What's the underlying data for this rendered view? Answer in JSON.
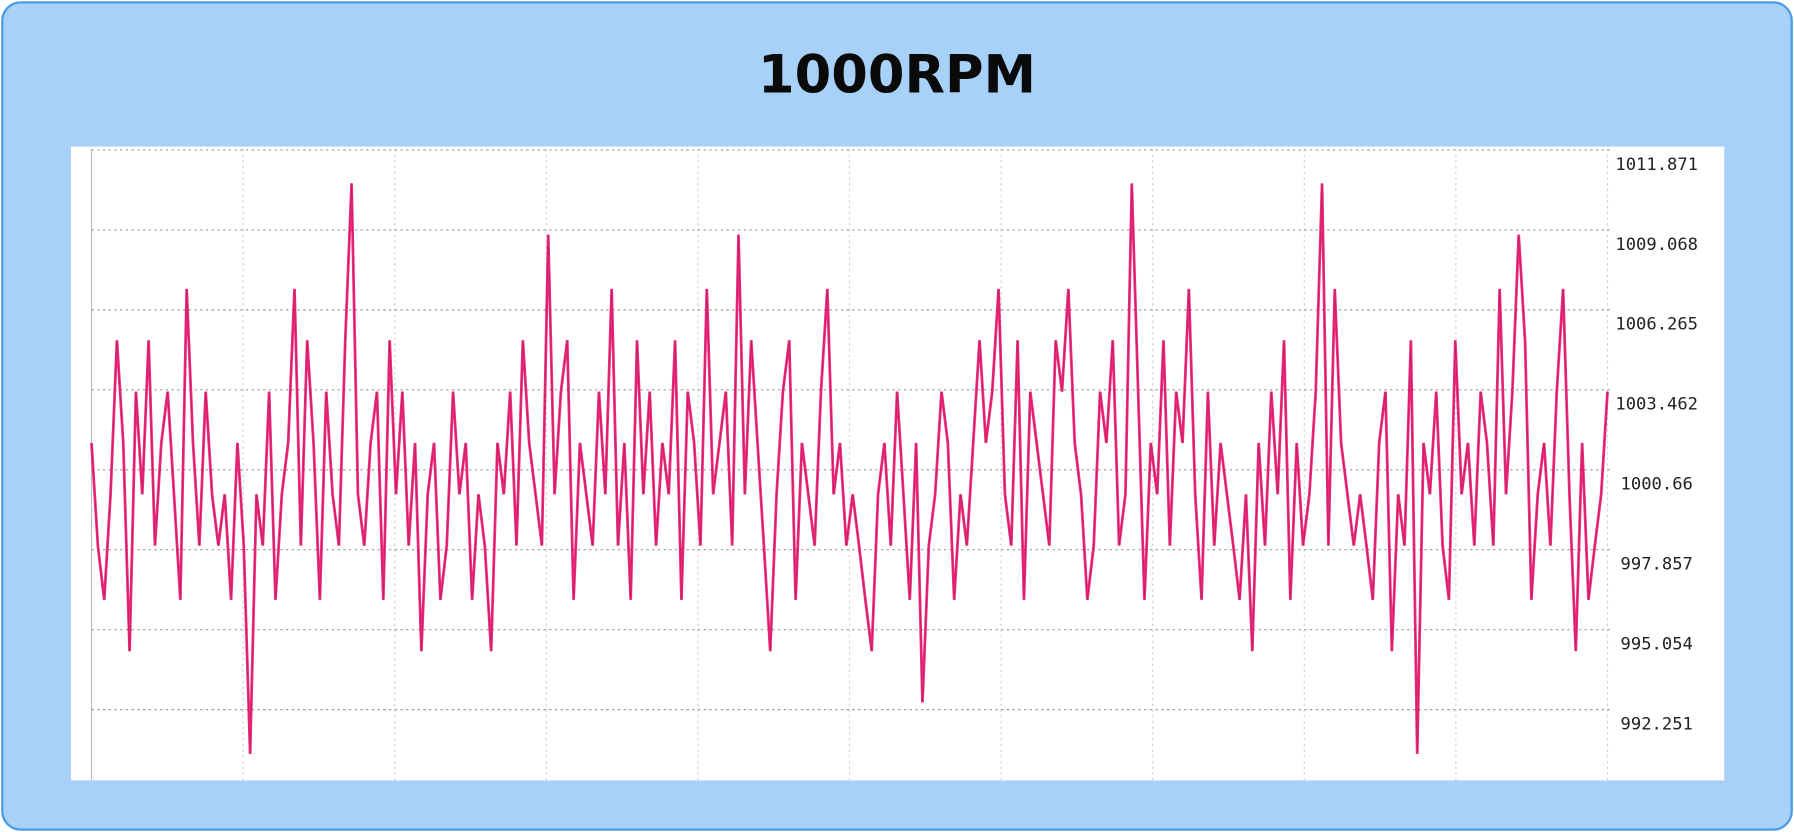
{
  "chart_data": {
    "type": "line",
    "title": "1000RPM",
    "ylim": [
      989.77,
      1011.87
    ],
    "yticks": [
      1011.871,
      1009.068,
      1006.265,
      1003.462,
      1000.66,
      997.857,
      995.054,
      992.251
    ],
    "grid": true,
    "series": [
      {
        "color": "#f0166f",
        "values": [
          1001.6,
          998,
          996.1,
          999.8,
          1005.2,
          1001.6,
          994.3,
          1003.4,
          999.8,
          1005.2,
          998,
          1001.6,
          1003.4,
          999.8,
          996.1,
          1007,
          1001.6,
          998,
          1003.4,
          999.8,
          998,
          999.8,
          996.1,
          1001.6,
          998,
          990.7,
          999.8,
          998,
          1003.4,
          996.1,
          999.8,
          1001.6,
          1007,
          998,
          1005.2,
          1001.6,
          996.1,
          1003.4,
          999.8,
          998,
          1005.2,
          1010.7,
          999.8,
          998,
          1001.6,
          1003.4,
          996.1,
          1005.2,
          999.8,
          1003.4,
          998,
          1001.6,
          994.3,
          999.8,
          1001.6,
          996.1,
          998,
          1003.4,
          999.8,
          1001.6,
          996.1,
          999.8,
          998,
          994.3,
          1001.6,
          999.8,
          1003.4,
          998,
          1005.2,
          1001.6,
          999.8,
          998,
          1008.9,
          999.8,
          1003.4,
          1005.2,
          996.1,
          1001.6,
          999.8,
          998,
          1003.4,
          999.8,
          1007,
          998,
          1001.6,
          996.1,
          1005.2,
          999.8,
          1003.4,
          998,
          1001.6,
          999.8,
          1005.2,
          996.1,
          1003.4,
          1001.6,
          998,
          1007,
          999.8,
          1001.6,
          1003.4,
          998,
          1008.9,
          999.8,
          1005.2,
          1001.6,
          998,
          994.3,
          999.8,
          1003.4,
          1005.2,
          996.1,
          1001.6,
          999.8,
          998,
          1003.4,
          1007,
          999.8,
          1001.6,
          998,
          999.8,
          998,
          996.1,
          994.3,
          999.8,
          1001.6,
          998,
          1003.4,
          999.8,
          996.1,
          1001.6,
          992.5,
          998,
          999.8,
          1003.4,
          1001.6,
          996.1,
          999.8,
          998,
          1001.6,
          1005.2,
          1001.6,
          1003.4,
          1007,
          999.8,
          998,
          1005.2,
          996.1,
          1003.4,
          1001.6,
          999.8,
          998,
          1005.2,
          1003.4,
          1007,
          1001.6,
          999.8,
          996.1,
          998,
          1003.4,
          1001.6,
          1005.2,
          998,
          999.8,
          1010.7,
          1003.4,
          996.1,
          1001.6,
          999.8,
          1005.2,
          998,
          1003.4,
          1001.6,
          1007,
          999.8,
          996.1,
          1003.4,
          998,
          1001.6,
          999.8,
          998,
          996.1,
          999.8,
          994.3,
          1001.6,
          998,
          1003.4,
          999.8,
          1005.2,
          996.1,
          1001.6,
          998,
          999.8,
          1003.4,
          1010.7,
          998,
          1007,
          1001.6,
          999.8,
          998,
          999.8,
          998,
          996.1,
          1001.6,
          1003.4,
          994.3,
          999.8,
          998,
          1005.2,
          990.7,
          1001.6,
          999.8,
          1003.4,
          998,
          996.1,
          1005.2,
          999.8,
          1001.6,
          998,
          1003.4,
          1001.6,
          998,
          1007,
          999.8,
          1003.4,
          1008.9,
          1005.2,
          996.1,
          999.8,
          1001.6,
          998,
          1003.4,
          1007,
          999.8,
          994.3,
          1001.6,
          996.1,
          998,
          999.8,
          1003.4
        ]
      }
    ]
  }
}
